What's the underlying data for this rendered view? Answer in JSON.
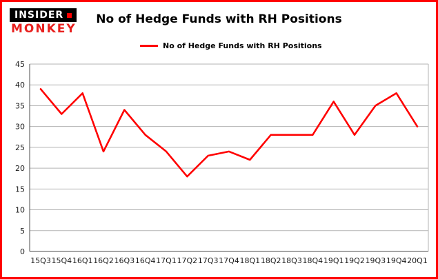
{
  "brand": {
    "line1": "INSIDER",
    "line2": "MONKEY"
  },
  "title": "No of Hedge Funds with RH Positions",
  "legend": {
    "label": "No of Hedge Funds with RH Positions",
    "color": "#ff0000"
  },
  "colors": {
    "border": "#ff0000",
    "line": "#ff0000",
    "grid": "#b3b3b3",
    "axis": "#4d4d4d",
    "text": "#000000",
    "brand_red": "#e8201e",
    "brand_black": "#000000"
  },
  "chart_data": {
    "type": "line",
    "title": "No of Hedge Funds with RH Positions",
    "categories": [
      "15Q3",
      "15Q4",
      "16Q1",
      "16Q2",
      "16Q3",
      "16Q4",
      "17Q1",
      "17Q2",
      "17Q3",
      "17Q4",
      "18Q1",
      "18Q2",
      "18Q3",
      "18Q4",
      "19Q1",
      "19Q2",
      "19Q3",
      "19Q4",
      "20Q1"
    ],
    "values": [
      39,
      33,
      38,
      24,
      34,
      28,
      24,
      18,
      23,
      24,
      22,
      28,
      28,
      28,
      36,
      28,
      35,
      38,
      30
    ],
    "xlabel": "",
    "ylabel": "",
    "ylim": [
      0,
      45
    ],
    "ytick_step": 5,
    "grid": true,
    "legend_position": "top-left",
    "series_color": "#ff0000"
  }
}
